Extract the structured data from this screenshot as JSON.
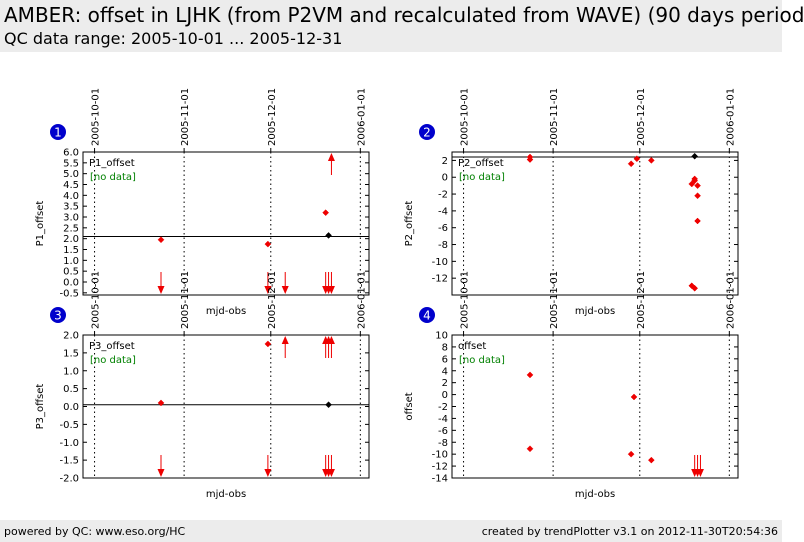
{
  "header": {
    "title": "AMBER: offset in LJHK (from P2VM and recalculated from WAVE) (90 days period",
    "subtitle": "QC data range: 2005-10-01 ... 2005-12-31"
  },
  "footer": {
    "left": "powered by QC: www.eso.org/HC",
    "right": "created by trendPlotter v3.1 on 2012-11-30T20:54:36"
  },
  "colors": {
    "data": "#ee0000",
    "latest": "#000000",
    "badge": "#0000cc",
    "nodata": "#008000"
  },
  "chart_data": [
    {
      "type": "scatter",
      "badge": "1",
      "series_label": "P1_offset",
      "nodata_label": "[no data]",
      "xlabel": "mjd-obs",
      "ylabel": "P1_offset",
      "x_range": [
        "2005-09-27",
        "2006-01-04"
      ],
      "date_ticks": [
        "2005-10-01",
        "2005-11-01",
        "2005-12-01",
        "2006-01-01"
      ],
      "ylim": [
        -0.6,
        6.0
      ],
      "yticks": [
        -0.5,
        0.0,
        0.5,
        1.0,
        1.5,
        2.0,
        2.5,
        3.0,
        3.5,
        4.0,
        4.5,
        5.0,
        5.5,
        6.0
      ],
      "ytick_labels": [
        "-0.5",
        "0.0",
        "0.5",
        "1.0",
        "1.5",
        "2.0",
        "2.5",
        "3.0",
        "3.5",
        "4.0",
        "4.5",
        "5.0",
        "5.5",
        "6.0"
      ],
      "reference_line": 2.1,
      "points": [
        {
          "x": "2005-10-24",
          "y": 1.95
        },
        {
          "x": "2005-11-30",
          "y": 1.75
        },
        {
          "x": "2005-12-20",
          "y": 3.2
        },
        {
          "x": "2005-12-21",
          "y": 2.15,
          "latest": true
        }
      ],
      "outliers_low": [
        "2005-10-24",
        "2005-11-30",
        "2005-12-06",
        "2005-12-20",
        "2005-12-21",
        "2005-12-22"
      ],
      "outliers_high": [
        "2005-12-22"
      ]
    },
    {
      "type": "scatter",
      "badge": "2",
      "series_label": "P2_offset",
      "nodata_label": "[no data]",
      "xlabel": "mjd-obs",
      "ylabel": "P2_offset",
      "x_range": [
        "2005-09-27",
        "2006-01-04"
      ],
      "date_ticks": [
        "2005-10-01",
        "2005-11-01",
        "2005-12-01",
        "2006-01-01"
      ],
      "ylim": [
        -14,
        3
      ],
      "yticks": [
        -12,
        -10,
        -8,
        -6,
        -4,
        -2,
        0,
        2
      ],
      "ytick_labels": [
        "-12",
        "-10",
        "-8",
        "-6",
        "-4",
        "-2",
        "0",
        "2"
      ],
      "reference_line": 2.4,
      "points": [
        {
          "x": "2005-10-24",
          "y": 2.4
        },
        {
          "x": "2005-10-24",
          "y": 2.1
        },
        {
          "x": "2005-11-28",
          "y": 1.6
        },
        {
          "x": "2005-11-30",
          "y": 2.2
        },
        {
          "x": "2005-12-05",
          "y": 2.0
        },
        {
          "x": "2005-12-19",
          "y": -0.8
        },
        {
          "x": "2005-12-20",
          "y": -0.2
        },
        {
          "x": "2005-12-20",
          "y": -0.4
        },
        {
          "x": "2005-12-21",
          "y": -1.0
        },
        {
          "x": "2005-12-21",
          "y": -2.2
        },
        {
          "x": "2005-12-21",
          "y": -5.2
        },
        {
          "x": "2005-12-19",
          "y": -12.9
        },
        {
          "x": "2005-12-20",
          "y": -13.2
        },
        {
          "x": "2005-12-20",
          "y": 2.5,
          "latest": true
        }
      ],
      "outliers_low": [],
      "outliers_high": []
    },
    {
      "type": "scatter",
      "badge": "3",
      "series_label": "P3_offset",
      "nodata_label": "[no data]",
      "xlabel": "mjd-obs",
      "ylabel": "P3_offset",
      "x_range": [
        "2005-09-27",
        "2006-01-04"
      ],
      "date_ticks": [
        "2005-10-01",
        "2005-11-01",
        "2005-12-01",
        "2006-01-01"
      ],
      "ylim": [
        -2.0,
        2.0
      ],
      "yticks": [
        -2.0,
        -1.5,
        -1.0,
        -0.5,
        0.0,
        0.5,
        1.0,
        1.5,
        2.0
      ],
      "ytick_labels": [
        "-2.0",
        "-1.5",
        "-1.0",
        "-0.5",
        "0.0",
        "0.5",
        "1.0",
        "1.5",
        "2.0"
      ],
      "reference_line": 0.05,
      "points": [
        {
          "x": "2005-10-24",
          "y": 0.1
        },
        {
          "x": "2005-11-30",
          "y": 1.75
        },
        {
          "x": "2005-12-21",
          "y": 0.05,
          "latest": true
        }
      ],
      "outliers_low": [
        "2005-10-24",
        "2005-11-30",
        "2005-12-20",
        "2005-12-21",
        "2005-12-22"
      ],
      "outliers_high": [
        "2005-12-06",
        "2005-12-20",
        "2005-12-21",
        "2005-12-22"
      ]
    },
    {
      "type": "scatter",
      "badge": "4",
      "series_label": "offset",
      "nodata_label": "[no data]",
      "xlabel": "mjd-obs",
      "ylabel": "offset",
      "x_range": [
        "2005-09-27",
        "2006-01-04"
      ],
      "date_ticks": [
        "2005-10-01",
        "2005-11-01",
        "2005-12-01",
        "2006-01-01"
      ],
      "ylim": [
        -14,
        10
      ],
      "yticks": [
        -14,
        -12,
        -10,
        -8,
        -6,
        -4,
        -2,
        0,
        2,
        4,
        6,
        8,
        10
      ],
      "ytick_labels": [
        "-14",
        "-12",
        "-10",
        "-8",
        "-6",
        "-4",
        "-2",
        "0",
        "2",
        "4",
        "6",
        "8",
        "10"
      ],
      "reference_line": null,
      "points": [
        {
          "x": "2005-10-24",
          "y": 3.3
        },
        {
          "x": "2005-10-24",
          "y": -9.1
        },
        {
          "x": "2005-11-29",
          "y": -0.4
        },
        {
          "x": "2005-11-28",
          "y": -10.0
        },
        {
          "x": "2005-12-05",
          "y": -11.0
        }
      ],
      "outliers_low": [
        "2005-12-20",
        "2005-12-21",
        "2005-12-22"
      ],
      "outliers_high": []
    }
  ]
}
